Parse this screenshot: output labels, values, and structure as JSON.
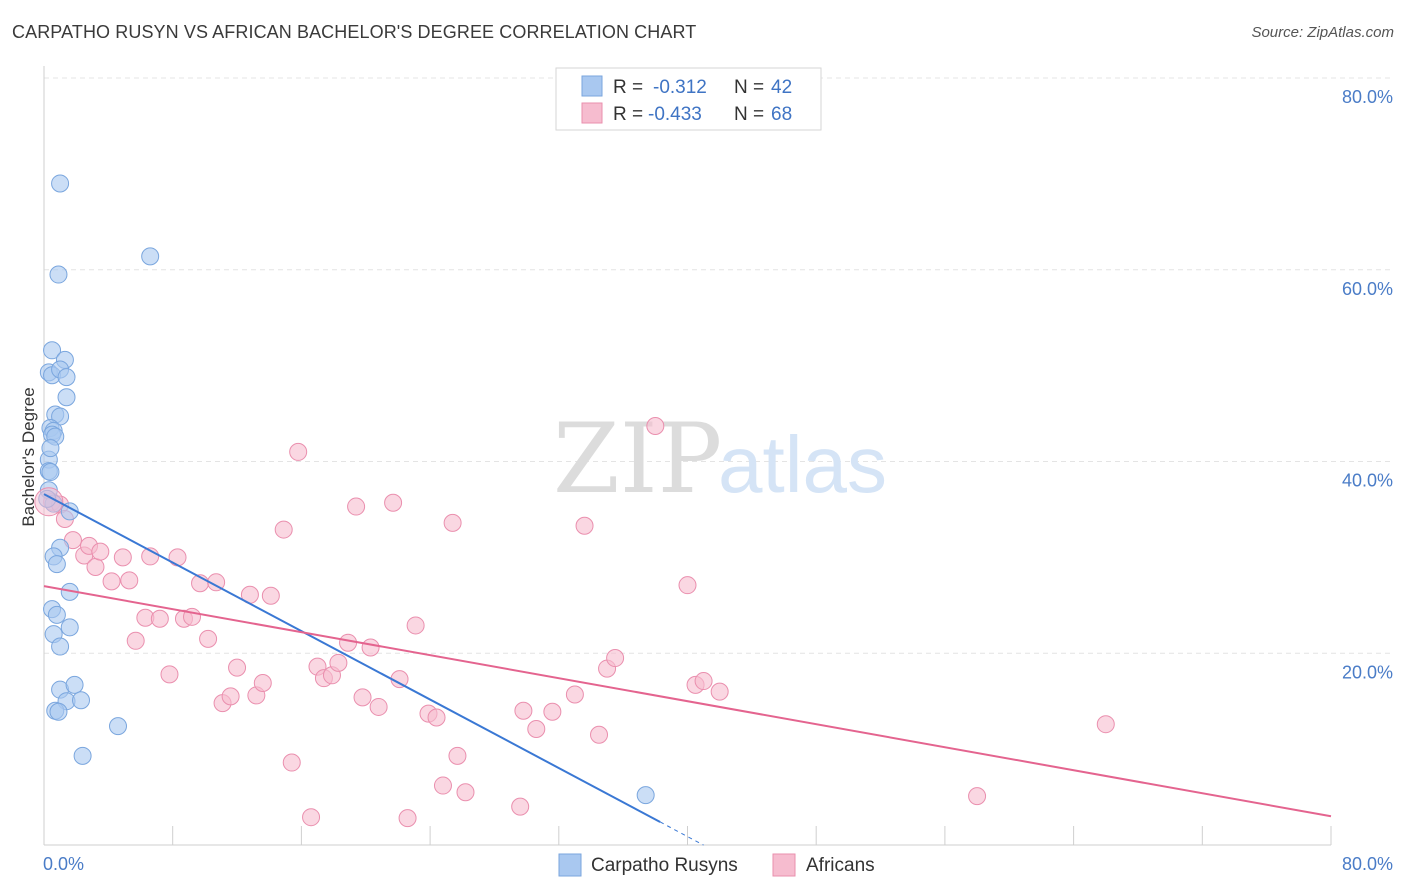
{
  "title": "CARPATHO RUSYN VS AFRICAN BACHELOR'S DEGREE CORRELATION CHART",
  "source": "Source: ZipAtlas.com",
  "watermark": {
    "zip": "ZIP",
    "atlas": "atlas"
  },
  "colors": {
    "blue_fill": "#a9c8f0",
    "blue_stroke": "#7aa6de",
    "blue_line": "#3a78d4",
    "pink_fill": "#f6bccf",
    "pink_stroke": "#ea8fae",
    "pink_line": "#e4648f",
    "tick_text": "#4a7cc7",
    "grid": "#e4e4e4"
  },
  "legend": {
    "rows": [
      {
        "r_label": "R =",
        "r_value": "-0.312",
        "n_label": "N =",
        "n_value": "42"
      },
      {
        "r_label": "R =",
        "r_value": "-0.433",
        "n_label": "N =",
        "n_value": "68"
      }
    ]
  },
  "chart_data": {
    "type": "scatter",
    "title": "CARPATHO RUSYN VS AFRICAN BACHELOR'S DEGREE CORRELATION CHART",
    "xlabel": "",
    "ylabel": "Bachelor's Degree",
    "xlim": [
      0,
      80
    ],
    "ylim": [
      0,
      80
    ],
    "x_tick_labels": [
      "0.0%",
      "80.0%"
    ],
    "y_ticks": [
      20,
      40,
      60,
      80
    ],
    "y_tick_labels": [
      "20.0%",
      "40.0%",
      "60.0%",
      "80.0%"
    ],
    "grid": "horizontal dashed",
    "legend_position": "top-center",
    "series": [
      {
        "name": "Carpatho Rusyns",
        "color": "#a9c8f0",
        "trend": {
          "x": [
            0,
            38.3
          ],
          "y": [
            36.6,
            2.4
          ],
          "dashed_extension_to_x": 41
        },
        "points": [
          [
            1.0,
            69.0
          ],
          [
            0.9,
            59.5
          ],
          [
            6.6,
            61.4
          ],
          [
            0.5,
            51.6
          ],
          [
            1.3,
            50.6
          ],
          [
            0.3,
            49.3
          ],
          [
            0.5,
            49.0
          ],
          [
            1.0,
            49.6
          ],
          [
            1.4,
            48.8
          ],
          [
            1.4,
            46.7
          ],
          [
            0.7,
            44.9
          ],
          [
            1.0,
            44.7
          ],
          [
            0.4,
            43.5
          ],
          [
            0.6,
            43.2
          ],
          [
            0.5,
            42.8
          ],
          [
            0.7,
            42.6
          ],
          [
            0.3,
            40.2
          ],
          [
            0.3,
            39.0
          ],
          [
            0.4,
            38.9
          ],
          [
            0.3,
            37.0
          ],
          [
            0.6,
            35.6
          ],
          [
            1.6,
            34.8
          ],
          [
            1.0,
            31.0
          ],
          [
            0.6,
            30.1
          ],
          [
            0.8,
            29.3
          ],
          [
            1.6,
            26.4
          ],
          [
            0.5,
            24.6
          ],
          [
            0.8,
            24.0
          ],
          [
            1.6,
            22.7
          ],
          [
            0.6,
            22.0
          ],
          [
            1.0,
            20.7
          ],
          [
            1.0,
            16.2
          ],
          [
            1.9,
            16.7
          ],
          [
            1.4,
            15.0
          ],
          [
            2.3,
            15.1
          ],
          [
            0.7,
            14.0
          ],
          [
            0.9,
            13.9
          ],
          [
            4.6,
            12.4
          ],
          [
            2.4,
            9.3
          ],
          [
            37.4,
            5.2
          ],
          [
            0.2,
            36.1
          ],
          [
            0.4,
            41.4
          ]
        ]
      },
      {
        "name": "Africans",
        "color": "#f6bccf",
        "trend": {
          "x": [
            0,
            80
          ],
          "y": [
            27.0,
            3.0
          ]
        },
        "points": [
          [
            0.5,
            35.8
          ],
          [
            1.0,
            35.5
          ],
          [
            1.3,
            34.0
          ],
          [
            1.8,
            31.8
          ],
          [
            2.5,
            30.2
          ],
          [
            2.8,
            31.2
          ],
          [
            3.2,
            29.0
          ],
          [
            3.5,
            30.6
          ],
          [
            4.2,
            27.5
          ],
          [
            4.9,
            30.0
          ],
          [
            5.3,
            27.6
          ],
          [
            5.7,
            21.3
          ],
          [
            6.3,
            23.7
          ],
          [
            6.6,
            30.1
          ],
          [
            7.2,
            23.6
          ],
          [
            7.8,
            17.8
          ],
          [
            8.3,
            30.0
          ],
          [
            8.7,
            23.6
          ],
          [
            9.2,
            23.8
          ],
          [
            9.7,
            27.3
          ],
          [
            10.2,
            21.5
          ],
          [
            10.7,
            27.4
          ],
          [
            11.1,
            14.8
          ],
          [
            11.6,
            15.5
          ],
          [
            12.0,
            18.5
          ],
          [
            12.8,
            26.1
          ],
          [
            13.2,
            15.6
          ],
          [
            13.6,
            16.9
          ],
          [
            14.1,
            26.0
          ],
          [
            14.9,
            32.9
          ],
          [
            15.4,
            8.6
          ],
          [
            15.8,
            41.0
          ],
          [
            16.6,
            2.9
          ],
          [
            17.0,
            18.6
          ],
          [
            17.4,
            17.4
          ],
          [
            17.9,
            17.7
          ],
          [
            18.3,
            19.0
          ],
          [
            18.9,
            21.1
          ],
          [
            19.4,
            35.3
          ],
          [
            19.8,
            15.4
          ],
          [
            20.3,
            20.6
          ],
          [
            20.8,
            14.4
          ],
          [
            21.7,
            35.7
          ],
          [
            22.1,
            17.3
          ],
          [
            22.6,
            2.8
          ],
          [
            23.1,
            22.9
          ],
          [
            23.9,
            13.7
          ],
          [
            24.4,
            13.3
          ],
          [
            24.8,
            6.2
          ],
          [
            25.4,
            33.6
          ],
          [
            25.7,
            9.3
          ],
          [
            26.2,
            5.5
          ],
          [
            29.6,
            4.0
          ],
          [
            29.8,
            14.0
          ],
          [
            30.6,
            12.1
          ],
          [
            31.6,
            13.9
          ],
          [
            33.0,
            15.7
          ],
          [
            33.6,
            33.3
          ],
          [
            34.5,
            11.5
          ],
          [
            35.0,
            18.4
          ],
          [
            35.5,
            19.5
          ],
          [
            38.0,
            43.7
          ],
          [
            40.0,
            27.1
          ],
          [
            40.5,
            16.7
          ],
          [
            41.0,
            17.1
          ],
          [
            42.0,
            16.0
          ],
          [
            58.0,
            5.1
          ],
          [
            66.0,
            12.6
          ]
        ]
      }
    ]
  },
  "bottom_legend": [
    "Carpatho Rusyns",
    "Africans"
  ]
}
